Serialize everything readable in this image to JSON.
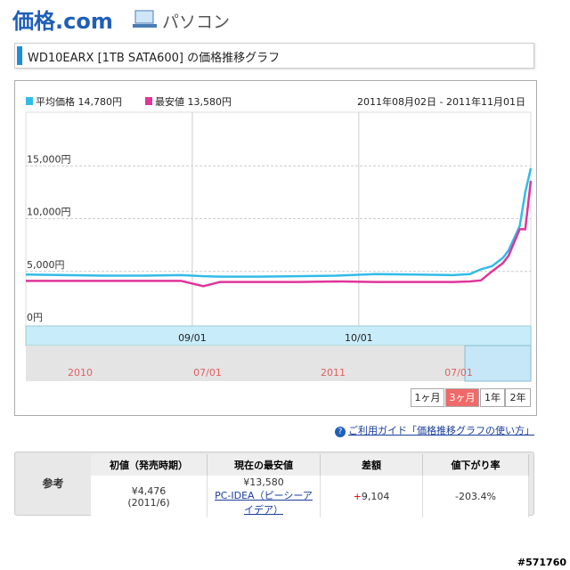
{
  "header": {
    "logo": "価格.com",
    "section": "パソコン"
  },
  "page_title": "WD10EARX [1TB SATA600] の価格推移グラフ",
  "chart_data": {
    "type": "line",
    "range": "2011年08月02日 - 2011年11月01日",
    "x": [
      "2011-08-02",
      "2011-08-09",
      "2011-08-16",
      "2011-08-23",
      "2011-08-30",
      "2011-09-03",
      "2011-09-06",
      "2011-09-13",
      "2011-09-20",
      "2011-09-27",
      "2011-10-04",
      "2011-10-11",
      "2011-10-18",
      "2011-10-21",
      "2011-10-23",
      "2011-10-25",
      "2011-10-27",
      "2011-10-28",
      "2011-10-30",
      "2011-10-31",
      "2011-11-01"
    ],
    "series": [
      {
        "name": "平均価格",
        "latest_label": "14,780円",
        "color": "#33bbe8",
        "values": [
          4700,
          4650,
          4600,
          4600,
          4650,
          4550,
          4500,
          4500,
          4550,
          4600,
          4750,
          4700,
          4650,
          4750,
          5200,
          5500,
          6300,
          7000,
          9300,
          12500,
          14780
        ]
      },
      {
        "name": "最安値",
        "latest_label": "13,580円",
        "color": "#e0359a",
        "values": [
          4100,
          4100,
          4100,
          4100,
          4100,
          3600,
          4000,
          4000,
          4000,
          4050,
          4000,
          4000,
          4000,
          4050,
          4150,
          5000,
          5800,
          6500,
          9000,
          9000,
          13580
        ]
      }
    ],
    "xlim": [
      "2011-08-02",
      "2011-11-01"
    ],
    "xticks": [
      {
        "value": "2011-09-01",
        "label": "09/01"
      },
      {
        "value": "2011-10-01",
        "label": "10/01"
      }
    ],
    "ylim": [
      0,
      20000
    ],
    "yticks": [
      {
        "value": 0,
        "label": "0円"
      },
      {
        "value": 5000,
        "label": "5,000円"
      },
      {
        "value": 10000,
        "label": "10,000円"
      },
      {
        "value": 15000,
        "label": "15,000円"
      }
    ],
    "grid": true,
    "navigator_labels": [
      "2010",
      "07/01",
      "2011",
      "07/01"
    ],
    "periods": [
      "1ヶ月",
      "3ヶ月",
      "1年",
      "2年"
    ],
    "active_period": "3ヶ月"
  },
  "guide_link": "ご利用ガイド「価格推移グラフの使い方」",
  "table": {
    "row_label": "参考",
    "headers": [
      "初値（発売時期）",
      "現在の最安値",
      "差額",
      "値下がり率"
    ],
    "first_price": "¥4,476",
    "first_date": "(2011/6)",
    "current_price": "¥13,580",
    "shop": "PC-IDEA（ピーシーアイデア）",
    "diff_sign": "+",
    "diff": "9,104",
    "drop_rate": "-203.4%"
  },
  "watermark": "#571760"
}
